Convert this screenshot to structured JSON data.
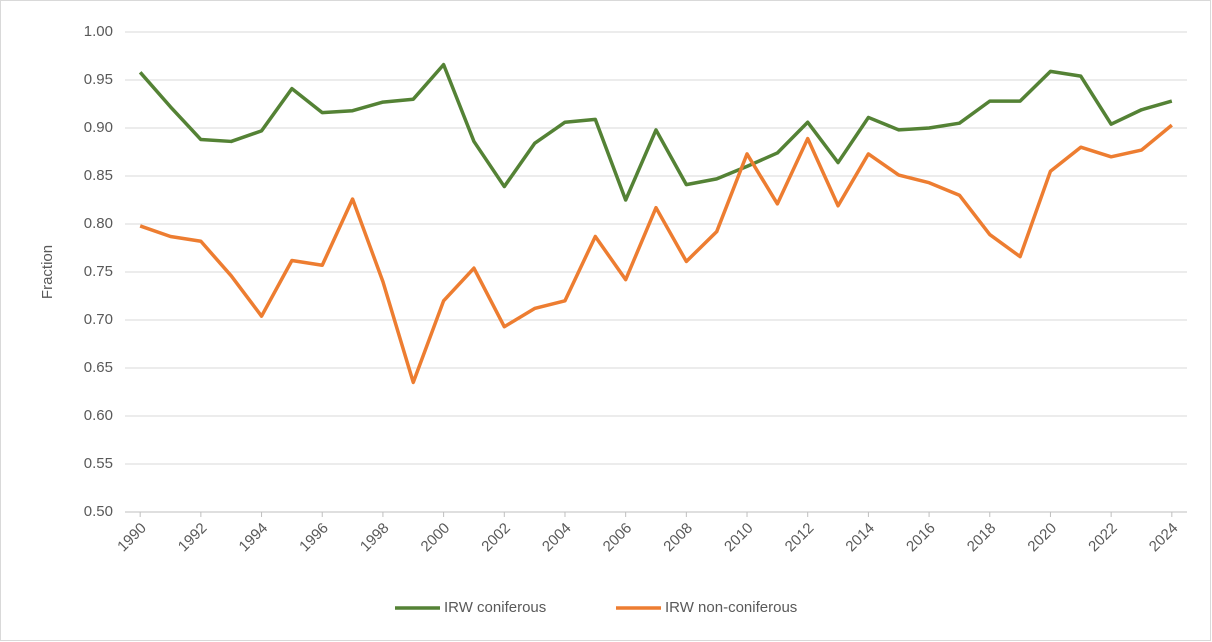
{
  "chart_data": {
    "type": "line",
    "y_label": "Fraction",
    "x": [
      1990,
      1991,
      1992,
      1993,
      1994,
      1995,
      1996,
      1997,
      1998,
      1999,
      2000,
      2001,
      2002,
      2003,
      2004,
      2005,
      2006,
      2007,
      2008,
      2009,
      2010,
      2011,
      2012,
      2013,
      2014,
      2015,
      2016,
      2017,
      2018,
      2019,
      2020,
      2021,
      2022,
      2023,
      2024
    ],
    "xlim": [
      1989.5,
      2024.5
    ],
    "xticks": [
      1990,
      1992,
      1994,
      1996,
      1998,
      2000,
      2002,
      2004,
      2006,
      2008,
      2010,
      2012,
      2014,
      2016,
      2018,
      2020,
      2022,
      2024
    ],
    "ylim": [
      0.5,
      1.0
    ],
    "yticks": [
      {
        "value": 0.5,
        "label": "0.50"
      },
      0.55,
      {
        "value": 0.6,
        "label": "0.60"
      },
      0.65,
      {
        "value": 0.7,
        "label": "0.70"
      },
      0.75,
      {
        "value": 0.8,
        "label": "0.80"
      },
      0.85,
      {
        "value": 0.9,
        "label": "0.90"
      },
      0.95,
      {
        "value": 1.0,
        "label": "1.00"
      }
    ],
    "grid": true,
    "legend": "bottom",
    "series": [
      {
        "name": "IRW coniferous",
        "color": "#548235",
        "values": [
          0.958,
          0.922,
          0.888,
          0.886,
          0.897,
          0.941,
          0.916,
          0.918,
          0.927,
          0.93,
          0.966,
          0.886,
          0.839,
          0.884,
          0.906,
          0.909,
          0.825,
          0.898,
          0.841,
          0.847,
          0.86,
          0.874,
          0.906,
          0.864,
          0.911,
          0.898,
          0.9,
          0.905,
          0.928,
          0.928,
          0.959,
          0.954,
          0.904,
          0.919,
          0.928
        ]
      },
      {
        "name": "IRW non-coniferous",
        "color": "#ed7d31",
        "values": [
          0.798,
          0.787,
          0.782,
          0.746,
          0.704,
          0.762,
          0.757,
          0.826,
          0.74,
          0.635,
          0.72,
          0.754,
          0.693,
          0.712,
          0.72,
          0.787,
          0.742,
          0.817,
          0.761,
          0.792,
          0.873,
          0.821,
          0.889,
          0.819,
          0.873,
          0.851,
          0.843,
          0.83,
          0.789,
          0.766,
          0.855,
          0.88,
          0.87,
          0.877,
          0.903
        ]
      }
    ]
  }
}
